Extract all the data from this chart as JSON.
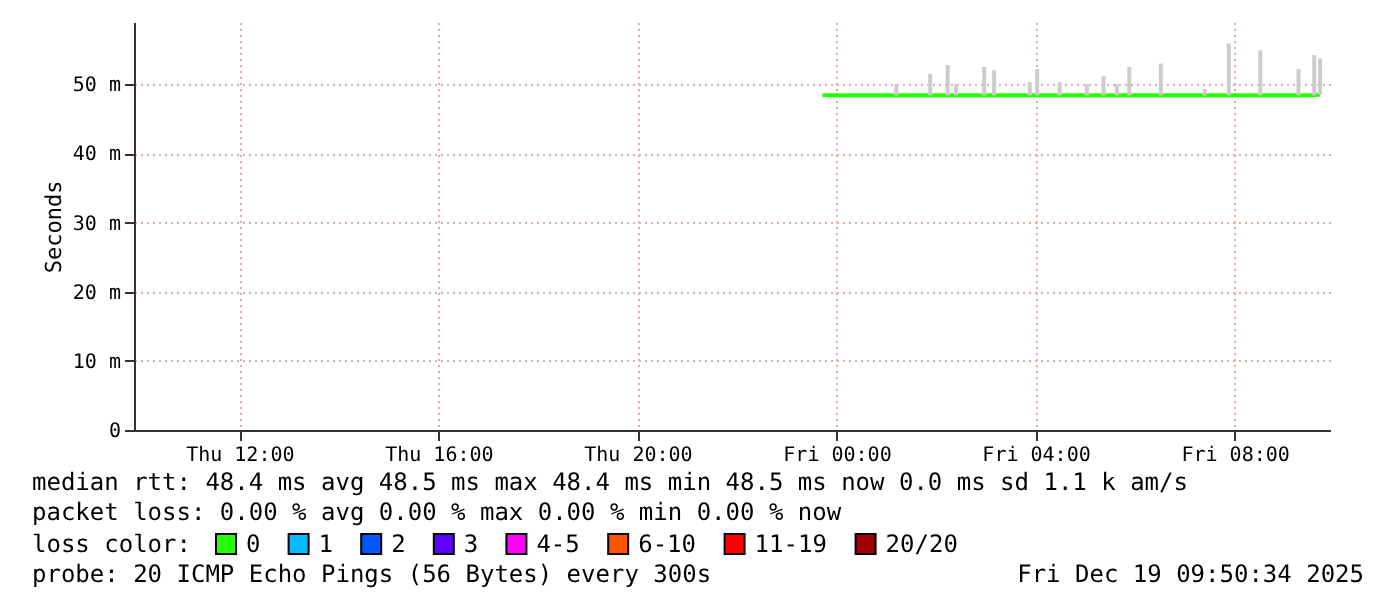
{
  "chart_data": {
    "type": "line",
    "ylabel": "Seconds",
    "legend_title": "loss color:",
    "legend": "bottom",
    "grid": true,
    "marker": "none",
    "line_style": "solid",
    "xlim": [
      "2025-12-18T09:53",
      "2025-12-19T09:55"
    ],
    "xticks": [
      {
        "value": "2025-12-18T12:00",
        "label": "Thu 12:00"
      },
      {
        "value": "2025-12-18T16:00",
        "label": "Thu 16:00"
      },
      {
        "value": "2025-12-18T20:00",
        "label": "Thu 20:00"
      },
      {
        "value": "2025-12-19T00:00",
        "label": "Fri 00:00"
      },
      {
        "value": "2025-12-19T04:00",
        "label": "Fri 04:00"
      },
      {
        "value": "2025-12-19T08:00",
        "label": "Fri 08:00"
      }
    ],
    "ylim": [
      0,
      59
    ],
    "yticks": [
      0,
      {
        "value": 10,
        "label": "10 m"
      },
      {
        "value": 20,
        "label": "20 m"
      },
      {
        "value": 30,
        "label": "30 m"
      },
      {
        "value": 40,
        "label": "40 m"
      },
      {
        "value": 50,
        "label": "50 m"
      }
    ],
    "series": [
      {
        "name": "0",
        "color": "#26ff00",
        "x": [
          "2025-12-18T23:43",
          "2025-12-19T01:12",
          "2025-12-19T01:53",
          "2025-12-19T02:14",
          "2025-12-19T02:24",
          "2025-12-19T02:58",
          "2025-12-19T03:10",
          "2025-12-19T03:53",
          "2025-12-19T04:02",
          "2025-12-19T04:29",
          "2025-12-19T05:02",
          "2025-12-19T05:22",
          "2025-12-19T05:38",
          "2025-12-19T05:53",
          "2025-12-19T06:31",
          "2025-12-19T07:24",
          "2025-12-19T07:53",
          "2025-12-19T08:31",
          "2025-12-19T09:17",
          "2025-12-19T09:36",
          "2025-12-19T09:43"
        ],
        "values": [
          48.4,
          48.4,
          48.4,
          48.4,
          48.4,
          48.4,
          48.4,
          48.4,
          48.4,
          48.4,
          48.4,
          48.4,
          48.4,
          48.4,
          48.4,
          48.4,
          48.4,
          48.4,
          48.4,
          48.4,
          48.5
        ],
        "errors": [
          null,
          [
            48.4,
            50
          ],
          [
            48.4,
            51.5
          ],
          [
            48.4,
            52.8
          ],
          [
            48.4,
            50
          ],
          [
            48.4,
            52.5
          ],
          [
            48.4,
            52
          ],
          [
            48.4,
            50.3
          ],
          [
            48.4,
            52.2
          ],
          [
            48.4,
            50.3
          ],
          [
            48.4,
            50
          ],
          [
            48.4,
            51.2
          ],
          [
            48.4,
            50
          ],
          [
            48.4,
            52.5
          ],
          [
            48.4,
            53
          ],
          [
            48.4,
            49.3
          ],
          [
            48.4,
            55.9
          ],
          [
            48.4,
            54.9
          ],
          [
            48.4,
            52.2
          ],
          [
            48.4,
            54.2
          ],
          [
            48.5,
            53.7
          ]
        ]
      },
      {
        "name": "1",
        "color": "#00bbff"
      },
      {
        "name": "2",
        "color": "#0059ff"
      },
      {
        "name": "3",
        "color": "#5e00ff"
      },
      {
        "name": "4-5",
        "color": "#ff00ff"
      },
      {
        "name": "6-10",
        "color": "#ff5500"
      },
      {
        "name": "11-19",
        "color": "#ff0000"
      },
      {
        "name": "20/20",
        "color": "#a10000"
      }
    ],
    "annotations": [
      "median rtt:  48.4 ms avg  48.5 ms max  48.4 ms min  48.5 ms now  0.0 ms sd  1.1 k am/s",
      "packet loss: 0.00 % avg  0.00 % max  0.00 % min  0.00 % now",
      "probe:       20 ICMP Echo Pings (56 Bytes) every 300s",
      "Fri Dec 19 09:50:34 2025"
    ]
  }
}
